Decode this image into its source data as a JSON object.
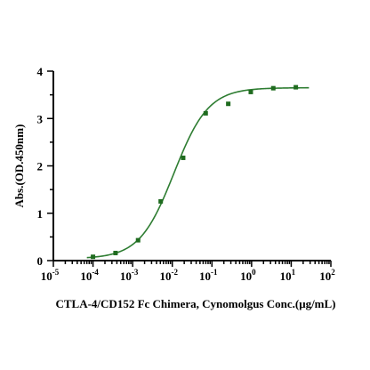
{
  "chart_data": {
    "type": "scatter",
    "title": "",
    "xlabel": "CTLA-4/CD152 Fc Chimera, Cynomolgus Conc.(μg/mL)",
    "ylabel": "Abs.(OD.450nm)",
    "x_scale": "log",
    "xlim": [
      1e-05,
      100
    ],
    "ylim": [
      0,
      4
    ],
    "x_ticks": [
      {
        "base": "10",
        "exp": "-5"
      },
      {
        "base": "10",
        "exp": "-4"
      },
      {
        "base": "10",
        "exp": "-3"
      },
      {
        "base": "10",
        "exp": "-2"
      },
      {
        "base": "10",
        "exp": "-1"
      },
      {
        "base": "10",
        "exp": "0"
      },
      {
        "base": "10",
        "exp": "1"
      },
      {
        "base": "10",
        "exp": "2"
      }
    ],
    "y_ticks": [
      "0",
      "1",
      "2",
      "3",
      "4"
    ],
    "grid": false,
    "marker_color": "#1f6b1f",
    "curve_color": "#2e7d32",
    "series": [
      {
        "x": [
          0.0001,
          0.00037,
          0.00137,
          0.0051,
          0.0188,
          0.0696,
          0.258,
          0.955,
          3.53,
          13.07
        ],
        "y": [
          0.08,
          0.16,
          0.43,
          1.25,
          2.17,
          3.11,
          3.31,
          3.56,
          3.64,
          3.66
        ]
      }
    ],
    "fit": {
      "model": "4PL",
      "bottom": 0.04,
      "top": 3.65,
      "ec50": 0.011,
      "hill": 1.0,
      "x_range": [
        7e-05,
        28
      ]
    }
  }
}
